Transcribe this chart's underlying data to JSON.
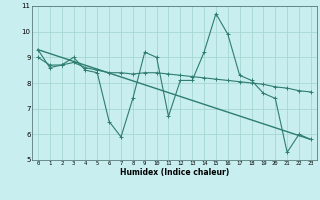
{
  "xlabel": "Humidex (Indice chaleur)",
  "bg_color": "#c8eef0",
  "line_color": "#2e7d6e",
  "grid_color": "#a0d4cc",
  "xlim": [
    -0.5,
    23.5
  ],
  "ylim": [
    5,
    11
  ],
  "xticks": [
    0,
    1,
    2,
    3,
    4,
    5,
    6,
    7,
    8,
    9,
    10,
    11,
    12,
    13,
    14,
    15,
    16,
    17,
    18,
    19,
    20,
    21,
    22,
    23
  ],
  "yticks": [
    5,
    6,
    7,
    8,
    9,
    10,
    11
  ],
  "series1_x": [
    0,
    1,
    2,
    3,
    4,
    5,
    6,
    7,
    8,
    9,
    10,
    11,
    12,
    13,
    14,
    15,
    16,
    17,
    18,
    19,
    20,
    21,
    22,
    23
  ],
  "series1_y": [
    9.3,
    8.6,
    8.7,
    9.0,
    8.5,
    8.4,
    6.5,
    5.9,
    7.4,
    9.2,
    9.0,
    6.7,
    8.1,
    8.1,
    9.2,
    10.7,
    9.9,
    8.3,
    8.1,
    7.6,
    7.4,
    5.3,
    6.0,
    5.8
  ],
  "series2_x": [
    0,
    1,
    2,
    3,
    4,
    5,
    6,
    7,
    8,
    9,
    10,
    11,
    12,
    13,
    14,
    15,
    16,
    17,
    18,
    19,
    20,
    21,
    22,
    23
  ],
  "series2_y": [
    9.0,
    8.7,
    8.7,
    8.8,
    8.6,
    8.5,
    8.4,
    8.4,
    8.35,
    8.4,
    8.4,
    8.35,
    8.3,
    8.25,
    8.2,
    8.15,
    8.1,
    8.05,
    8.0,
    7.95,
    7.85,
    7.8,
    7.7,
    7.65
  ],
  "series3_x": [
    0,
    23
  ],
  "series3_y": [
    9.3,
    5.8
  ]
}
